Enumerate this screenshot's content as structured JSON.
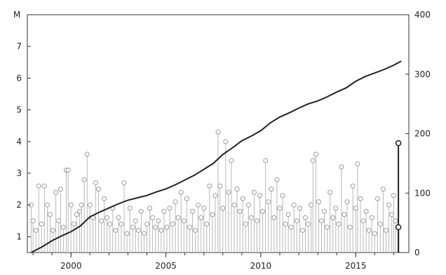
{
  "chart_data": {
    "type": "line",
    "title": "",
    "xlabel": "",
    "ylabel": "",
    "left_axis": {
      "unit": "M",
      "ticks": [
        "1",
        "2",
        "3",
        "4",
        "5",
        "6",
        "7"
      ],
      "ylim": [
        0.5,
        8
      ]
    },
    "right_axis": {
      "ticks": [
        "0",
        "100",
        "200",
        "300",
        "400"
      ],
      "ylim": [
        0,
        400
      ]
    },
    "x_ticks": [
      "2000",
      "2005",
      "2010",
      "2015"
    ],
    "xlim": [
      1997.7,
      2017.8
    ],
    "grid": false,
    "series": [
      {
        "type": "stem",
        "axis": "left",
        "points": [
          {
            "x": 1997.9,
            "y": 2.0
          },
          {
            "x": 1998.0,
            "y": 1.5
          },
          {
            "x": 1998.15,
            "y": 1.2
          },
          {
            "x": 1998.3,
            "y": 2.6
          },
          {
            "x": 1998.45,
            "y": 1.4
          },
          {
            "x": 1998.6,
            "y": 2.6
          },
          {
            "x": 1998.75,
            "y": 2.0
          },
          {
            "x": 1998.9,
            "y": 1.7
          },
          {
            "x": 1999.05,
            "y": 1.2
          },
          {
            "x": 1999.2,
            "y": 2.4
          },
          {
            "x": 1999.35,
            "y": 1.5
          },
          {
            "x": 1999.45,
            "y": 2.5
          },
          {
            "x": 1999.6,
            "y": 1.3
          },
          {
            "x": 1999.75,
            "y": 3.1
          },
          {
            "x": 1999.85,
            "y": 3.1
          },
          {
            "x": 2000.0,
            "y": 2.0
          },
          {
            "x": 2000.15,
            "y": 1.4
          },
          {
            "x": 2000.3,
            "y": 1.7
          },
          {
            "x": 2000.45,
            "y": 1.8
          },
          {
            "x": 2000.55,
            "y": 2.0
          },
          {
            "x": 2000.7,
            "y": 2.8
          },
          {
            "x": 2000.85,
            "y": 3.6
          },
          {
            "x": 2001.0,
            "y": 2.0
          },
          {
            "x": 2001.15,
            "y": 1.6
          },
          {
            "x": 2001.3,
            "y": 2.7
          },
          {
            "x": 2001.45,
            "y": 2.5
          },
          {
            "x": 2001.6,
            "y": 1.5
          },
          {
            "x": 2001.75,
            "y": 2.2
          },
          {
            "x": 2001.9,
            "y": 1.6
          },
          {
            "x": 2002.05,
            "y": 1.4
          },
          {
            "x": 2002.2,
            "y": 1.9
          },
          {
            "x": 2002.35,
            "y": 1.2
          },
          {
            "x": 2002.5,
            "y": 1.6
          },
          {
            "x": 2002.65,
            "y": 1.4
          },
          {
            "x": 2002.8,
            "y": 2.7
          },
          {
            "x": 2002.95,
            "y": 1.1
          },
          {
            "x": 2003.1,
            "y": 1.9
          },
          {
            "x": 2003.25,
            "y": 1.3
          },
          {
            "x": 2003.4,
            "y": 1.5
          },
          {
            "x": 2003.55,
            "y": 1.2
          },
          {
            "x": 2003.7,
            "y": 1.8
          },
          {
            "x": 2003.85,
            "y": 1.1
          },
          {
            "x": 2004.0,
            "y": 1.4
          },
          {
            "x": 2004.15,
            "y": 1.9
          },
          {
            "x": 2004.3,
            "y": 1.6
          },
          {
            "x": 2004.45,
            "y": 1.3
          },
          {
            "x": 2004.6,
            "y": 1.5
          },
          {
            "x": 2004.75,
            "y": 1.2
          },
          {
            "x": 2004.9,
            "y": 1.8
          },
          {
            "x": 2005.05,
            "y": 1.3
          },
          {
            "x": 2005.2,
            "y": 1.9
          },
          {
            "x": 2005.35,
            "y": 1.4
          },
          {
            "x": 2005.5,
            "y": 2.1
          },
          {
            "x": 2005.65,
            "y": 1.6
          },
          {
            "x": 2005.8,
            "y": 2.4
          },
          {
            "x": 2005.95,
            "y": 1.5
          },
          {
            "x": 2006.1,
            "y": 2.2
          },
          {
            "x": 2006.25,
            "y": 1.3
          },
          {
            "x": 2006.4,
            "y": 1.8
          },
          {
            "x": 2006.55,
            "y": 1.2
          },
          {
            "x": 2006.7,
            "y": 2.0
          },
          {
            "x": 2006.85,
            "y": 1.6
          },
          {
            "x": 2007.0,
            "y": 1.9
          },
          {
            "x": 2007.15,
            "y": 1.4
          },
          {
            "x": 2007.3,
            "y": 2.6
          },
          {
            "x": 2007.45,
            "y": 1.7
          },
          {
            "x": 2007.6,
            "y": 2.3
          },
          {
            "x": 2007.75,
            "y": 4.3
          },
          {
            "x": 2007.85,
            "y": 2.6
          },
          {
            "x": 2008.0,
            "y": 1.9
          },
          {
            "x": 2008.15,
            "y": 4.0
          },
          {
            "x": 2008.3,
            "y": 2.4
          },
          {
            "x": 2008.45,
            "y": 3.4
          },
          {
            "x": 2008.6,
            "y": 2.0
          },
          {
            "x": 2008.75,
            "y": 2.5
          },
          {
            "x": 2008.9,
            "y": 1.8
          },
          {
            "x": 2009.05,
            "y": 2.2
          },
          {
            "x": 2009.2,
            "y": 1.4
          },
          {
            "x": 2009.35,
            "y": 2.0
          },
          {
            "x": 2009.5,
            "y": 1.6
          },
          {
            "x": 2009.65,
            "y": 2.4
          },
          {
            "x": 2009.8,
            "y": 1.5
          },
          {
            "x": 2009.95,
            "y": 2.3
          },
          {
            "x": 2010.1,
            "y": 1.8
          },
          {
            "x": 2010.25,
            "y": 3.4
          },
          {
            "x": 2010.4,
            "y": 2.1
          },
          {
            "x": 2010.55,
            "y": 2.5
          },
          {
            "x": 2010.7,
            "y": 1.6
          },
          {
            "x": 2010.85,
            "y": 2.8
          },
          {
            "x": 2011.0,
            "y": 1.9
          },
          {
            "x": 2011.15,
            "y": 2.3
          },
          {
            "x": 2011.3,
            "y": 1.4
          },
          {
            "x": 2011.45,
            "y": 1.7
          },
          {
            "x": 2011.6,
            "y": 1.3
          },
          {
            "x": 2011.75,
            "y": 2.0
          },
          {
            "x": 2011.9,
            "y": 1.5
          },
          {
            "x": 2012.05,
            "y": 1.9
          },
          {
            "x": 2012.2,
            "y": 1.2
          },
          {
            "x": 2012.35,
            "y": 1.6
          },
          {
            "x": 2012.5,
            "y": 1.4
          },
          {
            "x": 2012.65,
            "y": 2.0
          },
          {
            "x": 2012.75,
            "y": 3.4
          },
          {
            "x": 2012.9,
            "y": 3.6
          },
          {
            "x": 2013.05,
            "y": 2.1
          },
          {
            "x": 2013.2,
            "y": 1.5
          },
          {
            "x": 2013.35,
            "y": 1.8
          },
          {
            "x": 2013.5,
            "y": 1.3
          },
          {
            "x": 2013.65,
            "y": 2.4
          },
          {
            "x": 2013.8,
            "y": 1.6
          },
          {
            "x": 2013.95,
            "y": 1.9
          },
          {
            "x": 2014.1,
            "y": 1.4
          },
          {
            "x": 2014.25,
            "y": 3.2
          },
          {
            "x": 2014.4,
            "y": 1.7
          },
          {
            "x": 2014.55,
            "y": 2.1
          },
          {
            "x": 2014.7,
            "y": 1.3
          },
          {
            "x": 2014.85,
            "y": 2.6
          },
          {
            "x": 2015.0,
            "y": 1.9
          },
          {
            "x": 2015.1,
            "y": 3.3
          },
          {
            "x": 2015.25,
            "y": 2.2
          },
          {
            "x": 2015.4,
            "y": 1.5
          },
          {
            "x": 2015.55,
            "y": 1.8
          },
          {
            "x": 2015.7,
            "y": 1.2
          },
          {
            "x": 2015.85,
            "y": 1.6
          },
          {
            "x": 2016.0,
            "y": 1.1
          },
          {
            "x": 2016.15,
            "y": 2.2
          },
          {
            "x": 2016.3,
            "y": 1.4
          },
          {
            "x": 2016.45,
            "y": 2.5
          },
          {
            "x": 2016.6,
            "y": 1.2
          },
          {
            "x": 2016.75,
            "y": 2.0
          },
          {
            "x": 2016.9,
            "y": 1.7
          },
          {
            "x": 2017.0,
            "y": 2.3
          },
          {
            "x": 2017.1,
            "y": 1.5
          }
        ]
      },
      {
        "type": "stem",
        "axis": "left",
        "highlight": true,
        "points": [
          {
            "x": 2017.25,
            "y": 3.95
          },
          {
            "x": 2017.25,
            "y": 1.3
          }
        ]
      },
      {
        "type": "line",
        "axis": "right",
        "points": [
          {
            "x": 1997.9,
            "y": 0
          },
          {
            "x": 1998.5,
            "y": 10
          },
          {
            "x": 1999.0,
            "y": 20
          },
          {
            "x": 1999.5,
            "y": 28
          },
          {
            "x": 2000.0,
            "y": 35
          },
          {
            "x": 2000.5,
            "y": 45
          },
          {
            "x": 2001.0,
            "y": 60
          },
          {
            "x": 2001.5,
            "y": 68
          },
          {
            "x": 2002.0,
            "y": 75
          },
          {
            "x": 2002.5,
            "y": 82
          },
          {
            "x": 2003.0,
            "y": 88
          },
          {
            "x": 2003.5,
            "y": 92
          },
          {
            "x": 2004.0,
            "y": 96
          },
          {
            "x": 2004.5,
            "y": 102
          },
          {
            "x": 2005.0,
            "y": 107
          },
          {
            "x": 2005.5,
            "y": 114
          },
          {
            "x": 2006.0,
            "y": 122
          },
          {
            "x": 2006.5,
            "y": 130
          },
          {
            "x": 2007.0,
            "y": 140
          },
          {
            "x": 2007.5,
            "y": 150
          },
          {
            "x": 2008.0,
            "y": 165
          },
          {
            "x": 2008.5,
            "y": 176
          },
          {
            "x": 2009.0,
            "y": 188
          },
          {
            "x": 2009.5,
            "y": 196
          },
          {
            "x": 2010.0,
            "y": 205
          },
          {
            "x": 2010.5,
            "y": 218
          },
          {
            "x": 2011.0,
            "y": 228
          },
          {
            "x": 2011.5,
            "y": 235
          },
          {
            "x": 2012.0,
            "y": 243
          },
          {
            "x": 2012.5,
            "y": 250
          },
          {
            "x": 2013.0,
            "y": 255
          },
          {
            "x": 2013.5,
            "y": 262
          },
          {
            "x": 2014.0,
            "y": 270
          },
          {
            "x": 2014.5,
            "y": 277
          },
          {
            "x": 2015.0,
            "y": 288
          },
          {
            "x": 2015.5,
            "y": 296
          },
          {
            "x": 2016.0,
            "y": 302
          },
          {
            "x": 2016.5,
            "y": 308
          },
          {
            "x": 2017.0,
            "y": 315
          },
          {
            "x": 2017.4,
            "y": 322
          }
        ]
      }
    ]
  }
}
